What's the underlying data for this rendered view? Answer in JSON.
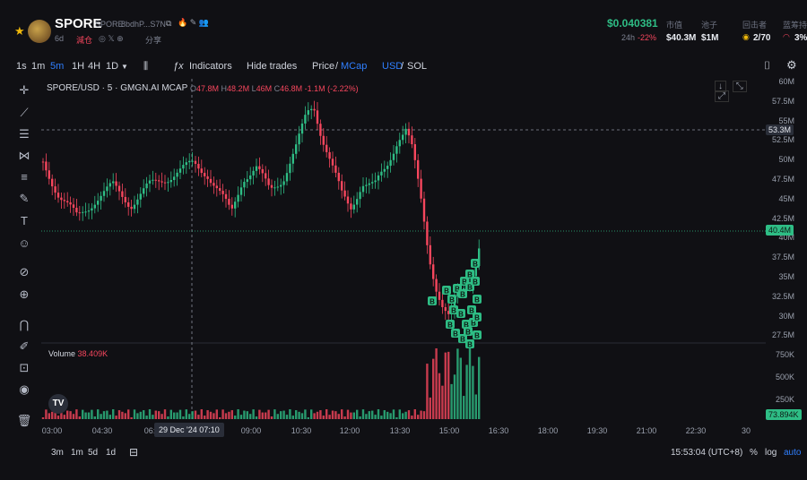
{
  "header": {
    "token_symbol": "SPORE",
    "token_sub": "SPORE",
    "address": "8bdhP...S7N",
    "age": "6d",
    "fork_label": "減仓",
    "share_label": "分享",
    "price": "$0.040381",
    "stats": [
      {
        "label": "市值",
        "value": "$40.3M"
      },
      {
        "label": "池子",
        "value": "$1M"
      },
      {
        "label": "回击者",
        "value": "2/70"
      },
      {
        "label": "蓝筹持",
        "value": "3%"
      }
    ],
    "change_label": "24h",
    "change_value": "-22%"
  },
  "toolbar": {
    "timeframes": [
      "1s",
      "1m",
      "5m",
      "1H",
      "4H",
      "1D"
    ],
    "active_timeframe": "5m",
    "indicators": "Indicators",
    "hide_trades": "Hide trades",
    "price_label": "Price",
    "mcap_label": "MCap",
    "usd_label": "USD",
    "sol_label": "SOL"
  },
  "legend": {
    "symbol": "SPORE/USD · 5 · GMGN.AI MCAP",
    "o": "47.8M",
    "h": "48.2M",
    "l": "46M",
    "c": "46.8M",
    "chg": "-1.1M (-2.22%)"
  },
  "volume_legend": {
    "label": "Volume",
    "value": "38.409K"
  },
  "price_axis": [
    "60M",
    "57.5M",
    "55M",
    "52.5M",
    "50M",
    "47.5M",
    "45M",
    "42.5M",
    "40M",
    "37.5M",
    "35M",
    "32.5M",
    "30M",
    "27.5M"
  ],
  "price_tags": {
    "crosshair": "53.3M",
    "last": "40.4M",
    "vol_last": "73.894K"
  },
  "volume_axis": [
    "750K",
    "500K",
    "250K"
  ],
  "time_axis": [
    "03:00",
    "04:30",
    "06:00",
    "09:00",
    "10:30",
    "12:00",
    "13:30",
    "15:00",
    "16:30",
    "18:00",
    "19:30",
    "21:00",
    "22:30",
    "30"
  ],
  "crosshair_time": "29 Dec '24   07:10",
  "bottom": {
    "ranges": [
      "3m",
      "1m",
      "5d",
      "1d"
    ],
    "clock": "15:53:04 (UTC+8)",
    "pct": "%",
    "log": "log",
    "auto": "auto"
  },
  "colors": {
    "up": "#2ebd85",
    "down": "#f6465d",
    "accent": "#2f7fff"
  }
}
